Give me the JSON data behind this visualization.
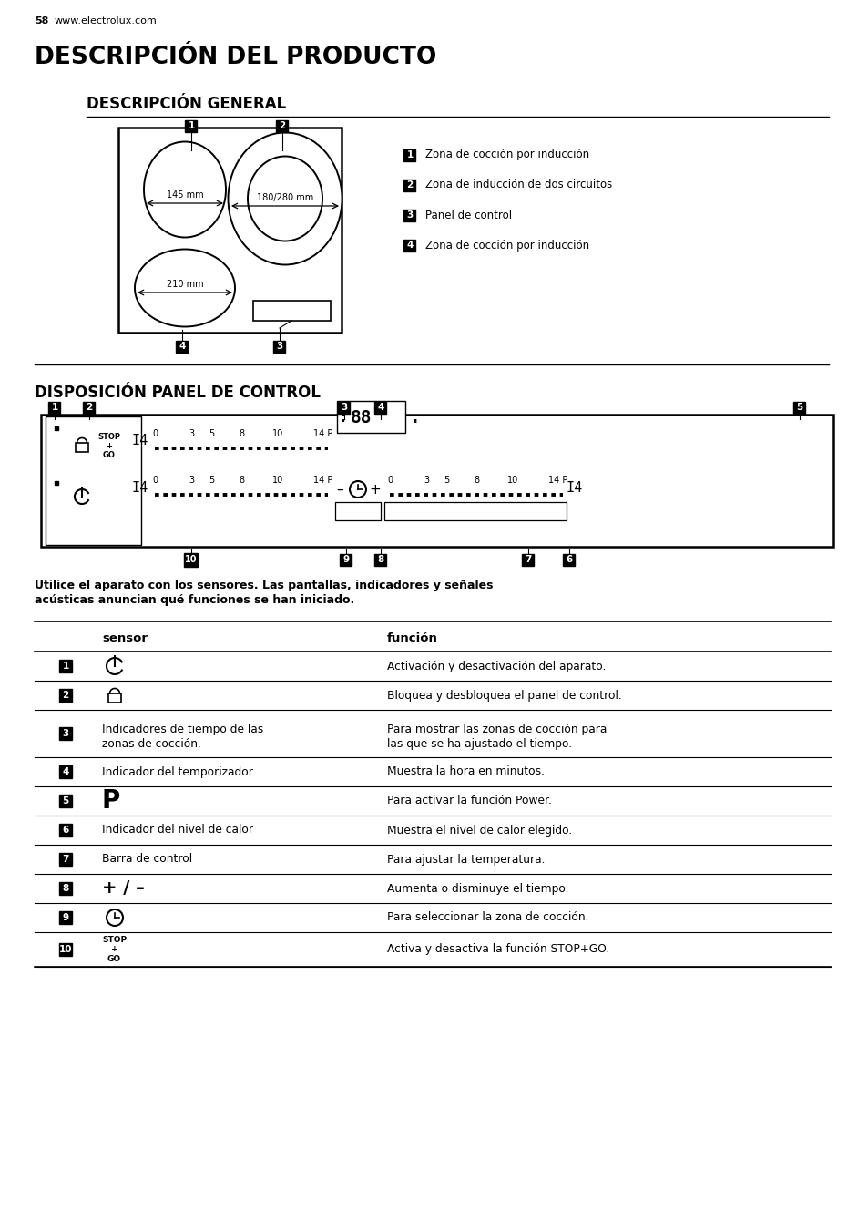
{
  "page_num": "58",
  "website": "www.electrolux.com",
  "title": "DESCRIPCIÓN DEL PRODUCTO",
  "section1": "DESCRIPCIÓN GENERAL",
  "section2": "DISPOSICIÓN PANEL DE CONTROL",
  "legend_items": [
    {
      "num": "1",
      "text": "Zona de cocción por inducción"
    },
    {
      "num": "2",
      "text": "Zona de inducción de dos circuitos"
    },
    {
      "num": "3",
      "text": "Panel de control"
    },
    {
      "num": "4",
      "text": "Zona de cocción por inducción"
    }
  ],
  "notice_line1": "Utilice el aparato con los sensores. Las pantallas, indicadores y señales",
  "notice_line2": "acústicas anuncian qué funciones se han iniciado.",
  "table_header_sensor": "sensor",
  "table_header_funcion": "función",
  "table_rows": [
    {
      "num": "1",
      "type": "power_icon",
      "sensor": "",
      "funcion": "Activación y desactivación del aparato.",
      "multiline": false
    },
    {
      "num": "2",
      "type": "lock_icon",
      "sensor": "",
      "funcion": "Bloquea y desbloquea el panel de control.",
      "multiline": false
    },
    {
      "num": "3",
      "type": "text",
      "sensor": "Indicadores de tiempo de las\nzonas de cocción.",
      "funcion": "Para mostrar las zonas de cocción para\nlas que se ha ajustado el tiempo.",
      "multiline": true
    },
    {
      "num": "4",
      "type": "text",
      "sensor": "Indicador del temporizador",
      "funcion": "Muestra la hora en minutos.",
      "multiline": false
    },
    {
      "num": "5",
      "type": "P_symbol",
      "sensor": "P",
      "funcion": "Para activar la función Power.",
      "multiline": false
    },
    {
      "num": "6",
      "type": "text",
      "sensor": "Indicador del nivel de calor",
      "funcion": "Muestra el nivel de calor elegido.",
      "multiline": false
    },
    {
      "num": "7",
      "type": "text",
      "sensor": "Barra de control",
      "funcion": "Para ajustar la temperatura.",
      "multiline": false
    },
    {
      "num": "8",
      "type": "plus_minus",
      "sensor": "+ / –",
      "funcion": "Aumenta o disminuye el tiempo.",
      "multiline": false
    },
    {
      "num": "9",
      "type": "clock_icon",
      "sensor": "",
      "funcion": "Para seleccionar la zona de cocción.",
      "multiline": false
    },
    {
      "num": "10",
      "type": "stopgo",
      "sensor": "STOP\n+\nGO",
      "funcion": "Activa y desactiva la función STOP+GO.",
      "multiline": false
    }
  ],
  "bg_color": "#ffffff"
}
